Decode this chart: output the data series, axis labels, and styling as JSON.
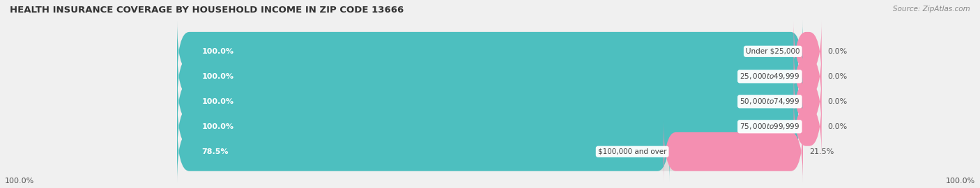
{
  "title": "HEALTH INSURANCE COVERAGE BY HOUSEHOLD INCOME IN ZIP CODE 13666",
  "source": "Source: ZipAtlas.com",
  "categories": [
    "Under $25,000",
    "$25,000 to $49,999",
    "$50,000 to $74,999",
    "$75,000 to $99,999",
    "$100,000 and over"
  ],
  "with_coverage": [
    100.0,
    100.0,
    100.0,
    100.0,
    78.5
  ],
  "without_coverage": [
    0.0,
    0.0,
    0.0,
    0.0,
    21.5
  ],
  "color_with": "#4dbfbf",
  "color_without": "#f48fb1",
  "bg_color": "#f0f0f0",
  "bar_bg_color": "#dcdcdc",
  "title_fontsize": 9.5,
  "label_fontsize": 8.0,
  "legend_fontsize": 8.5
}
